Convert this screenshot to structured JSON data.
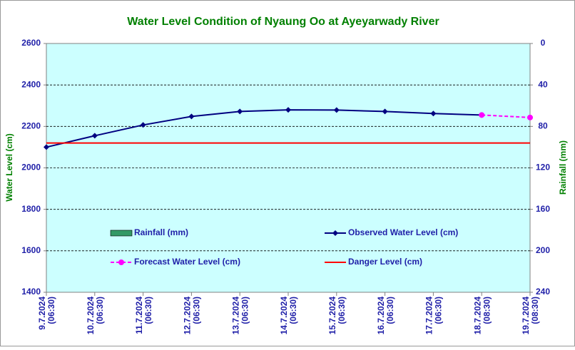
{
  "chart_data": {
    "type": "line",
    "title": "Water Level Condition of Nyaung Oo at Ayeyarwady River",
    "y_label": "Water Level (cm)",
    "y2_label": "Rainfall (mm)",
    "categories": [
      [
        "9.7.2024",
        "(06:30)"
      ],
      [
        "10.7.2024",
        "(06:30)"
      ],
      [
        "11.7.2024",
        "(06:30)"
      ],
      [
        "12.7.2024",
        "(06:30)"
      ],
      [
        "13.7.2024",
        "(06:30)"
      ],
      [
        "14.7.2024",
        "(06:30)"
      ],
      [
        "15.7.2024",
        "(06:30)"
      ],
      [
        "16.7.2024",
        "(06:30)"
      ],
      [
        "17.7.2024",
        "(06:30)"
      ],
      [
        "18.7.2024",
        "(08:30)"
      ],
      [
        "19.7.2024",
        "(08:30)"
      ]
    ],
    "ylim": [
      1400,
      2600
    ],
    "yticks": [
      1400,
      1600,
      1800,
      2000,
      2200,
      2400,
      2600
    ],
    "y2lim": [
      0,
      240
    ],
    "y2_inverted": true,
    "y2ticks": [
      0,
      40,
      80,
      120,
      160,
      200,
      240
    ],
    "grid": true,
    "series": [
      {
        "name": "Rainfall (mm)",
        "color": "#339966",
        "kind": "bar",
        "axis": "y2",
        "values": [
          null,
          null,
          null,
          null,
          null,
          null,
          null,
          null,
          null,
          null,
          null
        ]
      },
      {
        "name": "Observed Water Level (cm)",
        "color": "#000080",
        "kind": "line",
        "marker": "diamond",
        "values": [
          2100,
          2155,
          2207,
          2248,
          2272,
          2280,
          2279,
          2272,
          2262,
          2255,
          null
        ]
      },
      {
        "name": "Forecast Water Level (cm)",
        "color": "#ff00ff",
        "kind": "line",
        "marker": "circle",
        "dashed": true,
        "values": [
          null,
          null,
          null,
          null,
          null,
          null,
          null,
          null,
          null,
          2255,
          2243
        ]
      },
      {
        "name": "Danger Level (cm)",
        "color": "#ff0000",
        "kind": "hline",
        "value": 2120
      }
    ]
  }
}
